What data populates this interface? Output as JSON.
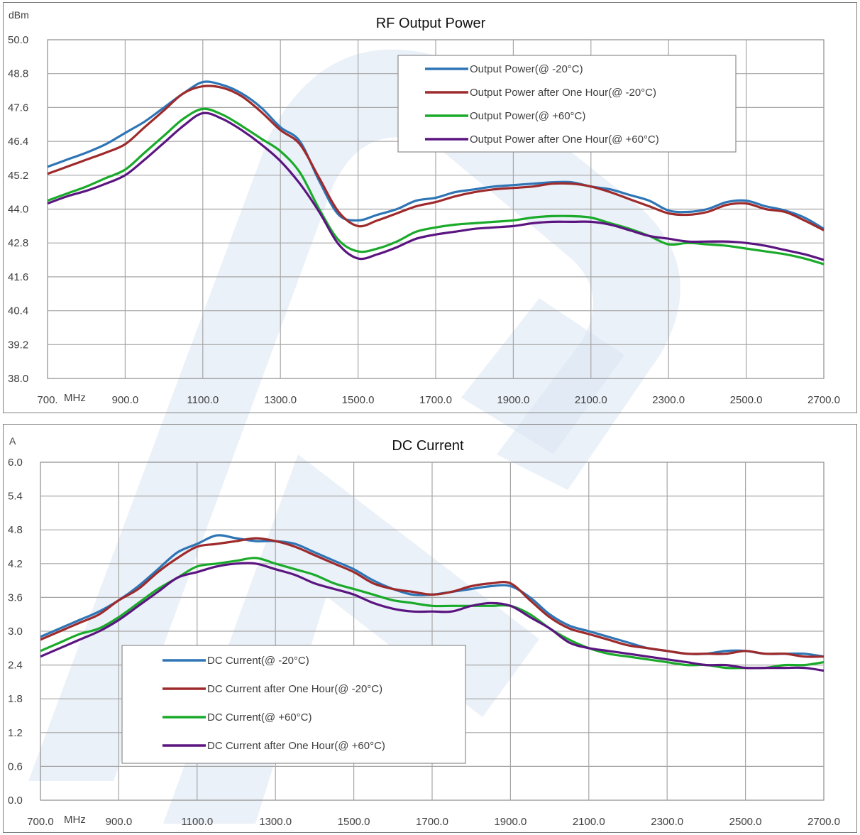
{
  "chart_data": [
    {
      "type": "line",
      "title": "RF Output Power",
      "ylabel": "dBm",
      "xlabel": "MHz",
      "ylim": [
        38.0,
        50.0
      ],
      "xlim": [
        700,
        2700
      ],
      "yticks": [
        "38.0",
        "39.2",
        "40.4",
        "41.6",
        "42.8",
        "44.0",
        "45.2",
        "46.4",
        "47.6",
        "48.8",
        "50.0"
      ],
      "xticks": [
        "700.",
        "900.0",
        "1100.0",
        "1300.0",
        "1500.0",
        "1700.0",
        "1900.0",
        "2100.0",
        "2300.0",
        "2500.0",
        "2700.0"
      ],
      "grid": true,
      "legend_position": "top-right",
      "x": [
        700,
        750,
        800,
        850,
        900,
        950,
        1000,
        1050,
        1100,
        1150,
        1200,
        1250,
        1300,
        1350,
        1400,
        1450,
        1500,
        1550,
        1600,
        1650,
        1700,
        1750,
        1800,
        1850,
        1900,
        1950,
        2000,
        2050,
        2100,
        2150,
        2200,
        2250,
        2300,
        2350,
        2400,
        2450,
        2500,
        2550,
        2600,
        2650,
        2700
      ],
      "series": [
        {
          "name": "Output Power(@ -20°C)",
          "color": "#2e75b6",
          "values": [
            45.5,
            45.75,
            46.0,
            46.3,
            46.7,
            47.1,
            47.6,
            48.1,
            48.5,
            48.4,
            48.1,
            47.6,
            46.9,
            46.4,
            45.0,
            43.8,
            43.6,
            43.8,
            44.0,
            44.3,
            44.4,
            44.6,
            44.7,
            44.8,
            44.85,
            44.9,
            44.95,
            44.95,
            44.8,
            44.7,
            44.5,
            44.3,
            43.95,
            43.9,
            44.0,
            44.25,
            44.3,
            44.1,
            43.95,
            43.7,
            43.3
          ]
        },
        {
          "name": "Output Power after One Hour(@ -20°C)",
          "color": "#9e2a2b",
          "values": [
            45.25,
            45.5,
            45.75,
            46.0,
            46.3,
            46.9,
            47.5,
            48.1,
            48.35,
            48.3,
            48.0,
            47.45,
            46.8,
            46.3,
            45.1,
            43.9,
            43.4,
            43.6,
            43.85,
            44.1,
            44.25,
            44.45,
            44.6,
            44.7,
            44.75,
            44.8,
            44.9,
            44.9,
            44.8,
            44.6,
            44.35,
            44.1,
            43.85,
            43.8,
            43.9,
            44.15,
            44.2,
            44.0,
            43.9,
            43.6,
            43.25
          ]
        },
        {
          "name": "Output Power(@ +60°C)",
          "color": "#1aaa2a",
          "values": [
            44.3,
            44.55,
            44.8,
            45.1,
            45.4,
            46.0,
            46.6,
            47.2,
            47.55,
            47.35,
            46.95,
            46.5,
            46.05,
            45.3,
            44.0,
            42.9,
            42.5,
            42.6,
            42.85,
            43.2,
            43.35,
            43.45,
            43.5,
            43.55,
            43.6,
            43.7,
            43.75,
            43.75,
            43.7,
            43.5,
            43.3,
            43.05,
            42.75,
            42.8,
            42.75,
            42.7,
            42.6,
            42.5,
            42.4,
            42.25,
            42.05
          ]
        },
        {
          "name": "Output Power after One Hour(@ +60°C)",
          "color": "#5b1580",
          "values": [
            44.2,
            44.45,
            44.65,
            44.9,
            45.2,
            45.75,
            46.35,
            46.95,
            47.4,
            47.2,
            46.8,
            46.3,
            45.7,
            44.9,
            43.9,
            42.75,
            42.25,
            42.4,
            42.65,
            42.95,
            43.1,
            43.2,
            43.3,
            43.35,
            43.4,
            43.5,
            43.55,
            43.55,
            43.55,
            43.45,
            43.25,
            43.05,
            42.95,
            42.85,
            42.85,
            42.85,
            42.8,
            42.7,
            42.55,
            42.4,
            42.2
          ]
        }
      ]
    },
    {
      "type": "line",
      "title": "DC Current",
      "ylabel": "A",
      "xlabel": "MHz",
      "ylim": [
        0.0,
        6.0
      ],
      "xlim": [
        700,
        2700
      ],
      "yticks": [
        "0.0",
        "0.6",
        "1.2",
        "1.8",
        "2.4",
        "3.0",
        "3.6",
        "4.2",
        "4.8",
        "5.4",
        "6.0"
      ],
      "xticks": [
        "700.0",
        "900.0",
        "1100.0",
        "1300.0",
        "1500.0",
        "1700.0",
        "1900.0",
        "2100.0",
        "2300.0",
        "2500.0",
        "2700.0"
      ],
      "grid": true,
      "legend_position": "bottom-left",
      "x": [
        700,
        750,
        800,
        850,
        900,
        950,
        1000,
        1050,
        1100,
        1150,
        1200,
        1250,
        1300,
        1350,
        1400,
        1450,
        1500,
        1550,
        1600,
        1650,
        1700,
        1750,
        1800,
        1850,
        1900,
        1950,
        2000,
        2050,
        2100,
        2150,
        2200,
        2250,
        2300,
        2350,
        2400,
        2450,
        2500,
        2550,
        2600,
        2650,
        2700
      ],
      "series": [
        {
          "name": "DC Current(@ -20°C)",
          "color": "#2e75b6",
          "values": [
            2.9,
            3.05,
            3.2,
            3.35,
            3.55,
            3.8,
            4.1,
            4.4,
            4.55,
            4.7,
            4.65,
            4.6,
            4.6,
            4.55,
            4.4,
            4.25,
            4.1,
            3.9,
            3.75,
            3.65,
            3.65,
            3.7,
            3.75,
            3.8,
            3.8,
            3.6,
            3.3,
            3.1,
            3.0,
            2.9,
            2.8,
            2.7,
            2.65,
            2.6,
            2.6,
            2.65,
            2.65,
            2.6,
            2.6,
            2.6,
            2.55
          ]
        },
        {
          "name": "DC Current after One Hour(@ -20°C)",
          "color": "#9e2a2b",
          "values": [
            2.85,
            3.0,
            3.15,
            3.3,
            3.55,
            3.75,
            4.05,
            4.3,
            4.5,
            4.55,
            4.6,
            4.65,
            4.6,
            4.5,
            4.35,
            4.2,
            4.05,
            3.85,
            3.75,
            3.7,
            3.65,
            3.7,
            3.8,
            3.85,
            3.85,
            3.55,
            3.25,
            3.05,
            2.95,
            2.85,
            2.75,
            2.7,
            2.65,
            2.6,
            2.6,
            2.6,
            2.65,
            2.6,
            2.6,
            2.55,
            2.55
          ]
        },
        {
          "name": "DC Current(@ +60°C)",
          "color": "#1aaa2a",
          "values": [
            2.65,
            2.8,
            2.95,
            3.05,
            3.25,
            3.5,
            3.75,
            3.95,
            4.15,
            4.2,
            4.25,
            4.3,
            4.2,
            4.1,
            4.0,
            3.85,
            3.75,
            3.65,
            3.55,
            3.5,
            3.45,
            3.45,
            3.45,
            3.45,
            3.45,
            3.3,
            3.05,
            2.85,
            2.7,
            2.6,
            2.55,
            2.5,
            2.45,
            2.4,
            2.4,
            2.35,
            2.35,
            2.35,
            2.4,
            2.4,
            2.45
          ]
        },
        {
          "name": "DC Current after One Hour(@ +60°C)",
          "color": "#5b1580",
          "values": [
            2.55,
            2.7,
            2.85,
            3.0,
            3.2,
            3.45,
            3.7,
            3.95,
            4.05,
            4.15,
            4.2,
            4.2,
            4.1,
            4.0,
            3.85,
            3.75,
            3.65,
            3.5,
            3.4,
            3.35,
            3.35,
            3.35,
            3.45,
            3.5,
            3.45,
            3.25,
            3.05,
            2.8,
            2.7,
            2.65,
            2.6,
            2.55,
            2.5,
            2.45,
            2.4,
            2.4,
            2.35,
            2.35,
            2.35,
            2.35,
            2.3
          ]
        }
      ]
    }
  ]
}
